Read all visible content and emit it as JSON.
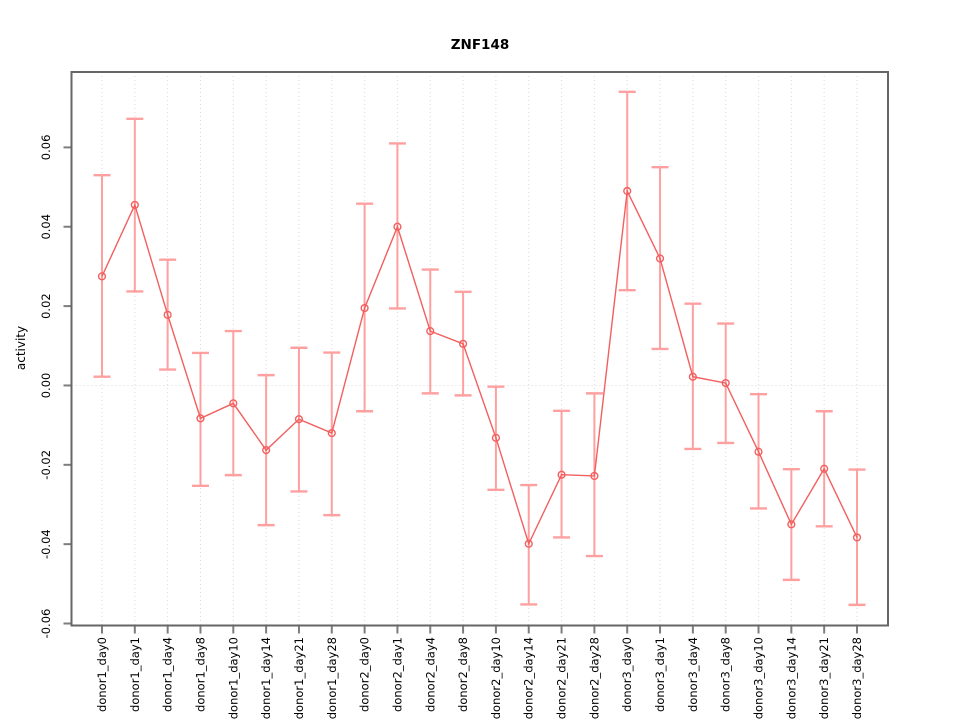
{
  "title": "ZNF148",
  "chart_data": {
    "type": "line",
    "title": "ZNF148",
    "xlabel": "",
    "ylabel": "activity",
    "legend": "none",
    "grid": "vertical dotted gridlines at each category; dotted horizontal line at y=0",
    "point_style": "open-circle",
    "line_color": "#f25f5f",
    "errorbar_color": "#ffa0a0",
    "grid_color": "#d9d9d9",
    "box_color": "#666666",
    "ylim": [
      -0.0605,
      0.079
    ],
    "yticks": [
      -0.06,
      -0.04,
      -0.02,
      0.0,
      0.02,
      0.04,
      0.06
    ],
    "categories": [
      "donor1_day0",
      "donor1_day1",
      "donor1_day4",
      "donor1_day8",
      "donor1_day10",
      "donor1_day14",
      "donor1_day21",
      "donor1_day28",
      "donor2_day0",
      "donor2_day1",
      "donor2_day4",
      "donor2_day8",
      "donor2_day10",
      "donor2_day14",
      "donor2_day21",
      "donor2_day28",
      "donor3_day0",
      "donor3_day1",
      "donor3_day4",
      "donor3_day8",
      "donor3_day10",
      "donor3_day14",
      "donor3_day21",
      "donor3_day28"
    ],
    "series": [
      {
        "name": "activity",
        "values": [
          0.0275,
          0.0455,
          0.0178,
          -0.0083,
          -0.0045,
          -0.0163,
          -0.0085,
          -0.012,
          0.0195,
          0.04,
          0.0137,
          0.0105,
          -0.0132,
          -0.0399,
          -0.0225,
          -0.0228,
          0.049,
          0.032,
          0.0022,
          0.0006,
          -0.0167,
          -0.035,
          -0.021,
          -0.0383
        ],
        "lower": [
          0.0022,
          0.0237,
          0.004,
          -0.0253,
          -0.0226,
          -0.0352,
          -0.0267,
          -0.0327,
          -0.0065,
          0.0194,
          -0.002,
          -0.0025,
          -0.0263,
          -0.0552,
          -0.0383,
          -0.043,
          0.024,
          0.0092,
          -0.016,
          -0.0145,
          -0.031,
          -0.049,
          -0.0355,
          -0.0553
        ],
        "upper": [
          0.053,
          0.0672,
          0.0317,
          0.0082,
          0.0137,
          0.0026,
          0.0095,
          0.0083,
          0.0458,
          0.061,
          0.0292,
          0.0236,
          -0.0003,
          -0.0251,
          -0.0064,
          -0.002,
          0.074,
          0.055,
          0.0206,
          0.0156,
          -0.0022,
          -0.0211,
          -0.0065,
          -0.0212
        ]
      }
    ]
  }
}
